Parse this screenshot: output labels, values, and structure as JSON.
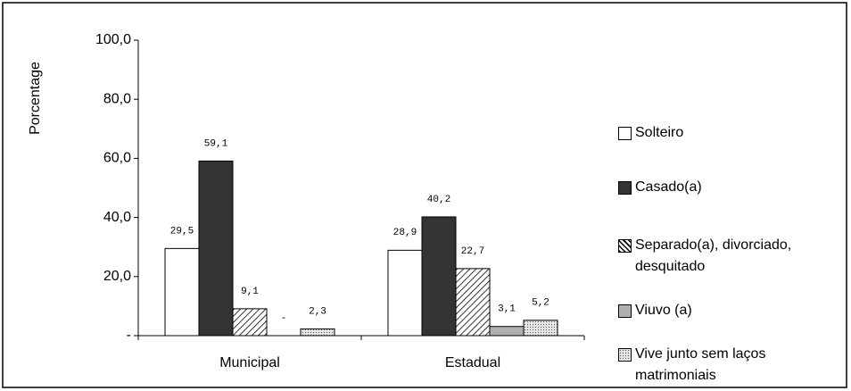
{
  "chart_data": {
    "type": "bar",
    "y_label": "Porcentage",
    "categories": [
      "Municipal",
      "Estadual"
    ],
    "series": [
      {
        "name": "Solteiro",
        "color": "#ffffff",
        "pattern": "none",
        "values": [
          29.5,
          28.9
        ],
        "value_labels": [
          "29,5",
          "28,9"
        ]
      },
      {
        "name": "Casado(a)",
        "color": "#333333",
        "pattern": "none",
        "values": [
          59.1,
          40.2
        ],
        "value_labels": [
          "59,1",
          "40,2"
        ]
      },
      {
        "name": "Separado(a), divorciado, desquitado",
        "color": "#ffffff",
        "pattern": "hatch",
        "values": [
          9.1,
          22.7
        ],
        "value_labels": [
          "9,1",
          "22,7"
        ]
      },
      {
        "name": "Viuvo (a)",
        "color": "#b0b0b0",
        "pattern": "none",
        "values": [
          0,
          3.1
        ],
        "value_labels": [
          "-",
          "3,1"
        ]
      },
      {
        "name": "Vive junto sem laços matrimoniais",
        "color": "#e4e4e4",
        "pattern": "dots",
        "values": [
          2.3,
          5.2
        ],
        "value_labels": [
          "2,3",
          "5,2"
        ]
      }
    ],
    "ylim": [
      0,
      100
    ],
    "yticks": [
      {
        "value": 0,
        "label": "-"
      },
      {
        "value": 20,
        "label": "20,0"
      },
      {
        "value": 40,
        "label": "40,0"
      },
      {
        "value": 60,
        "label": "60,0"
      },
      {
        "value": 80,
        "label": "80,0"
      },
      {
        "value": 100,
        "label": "100,0"
      }
    ],
    "legend": "right"
  }
}
